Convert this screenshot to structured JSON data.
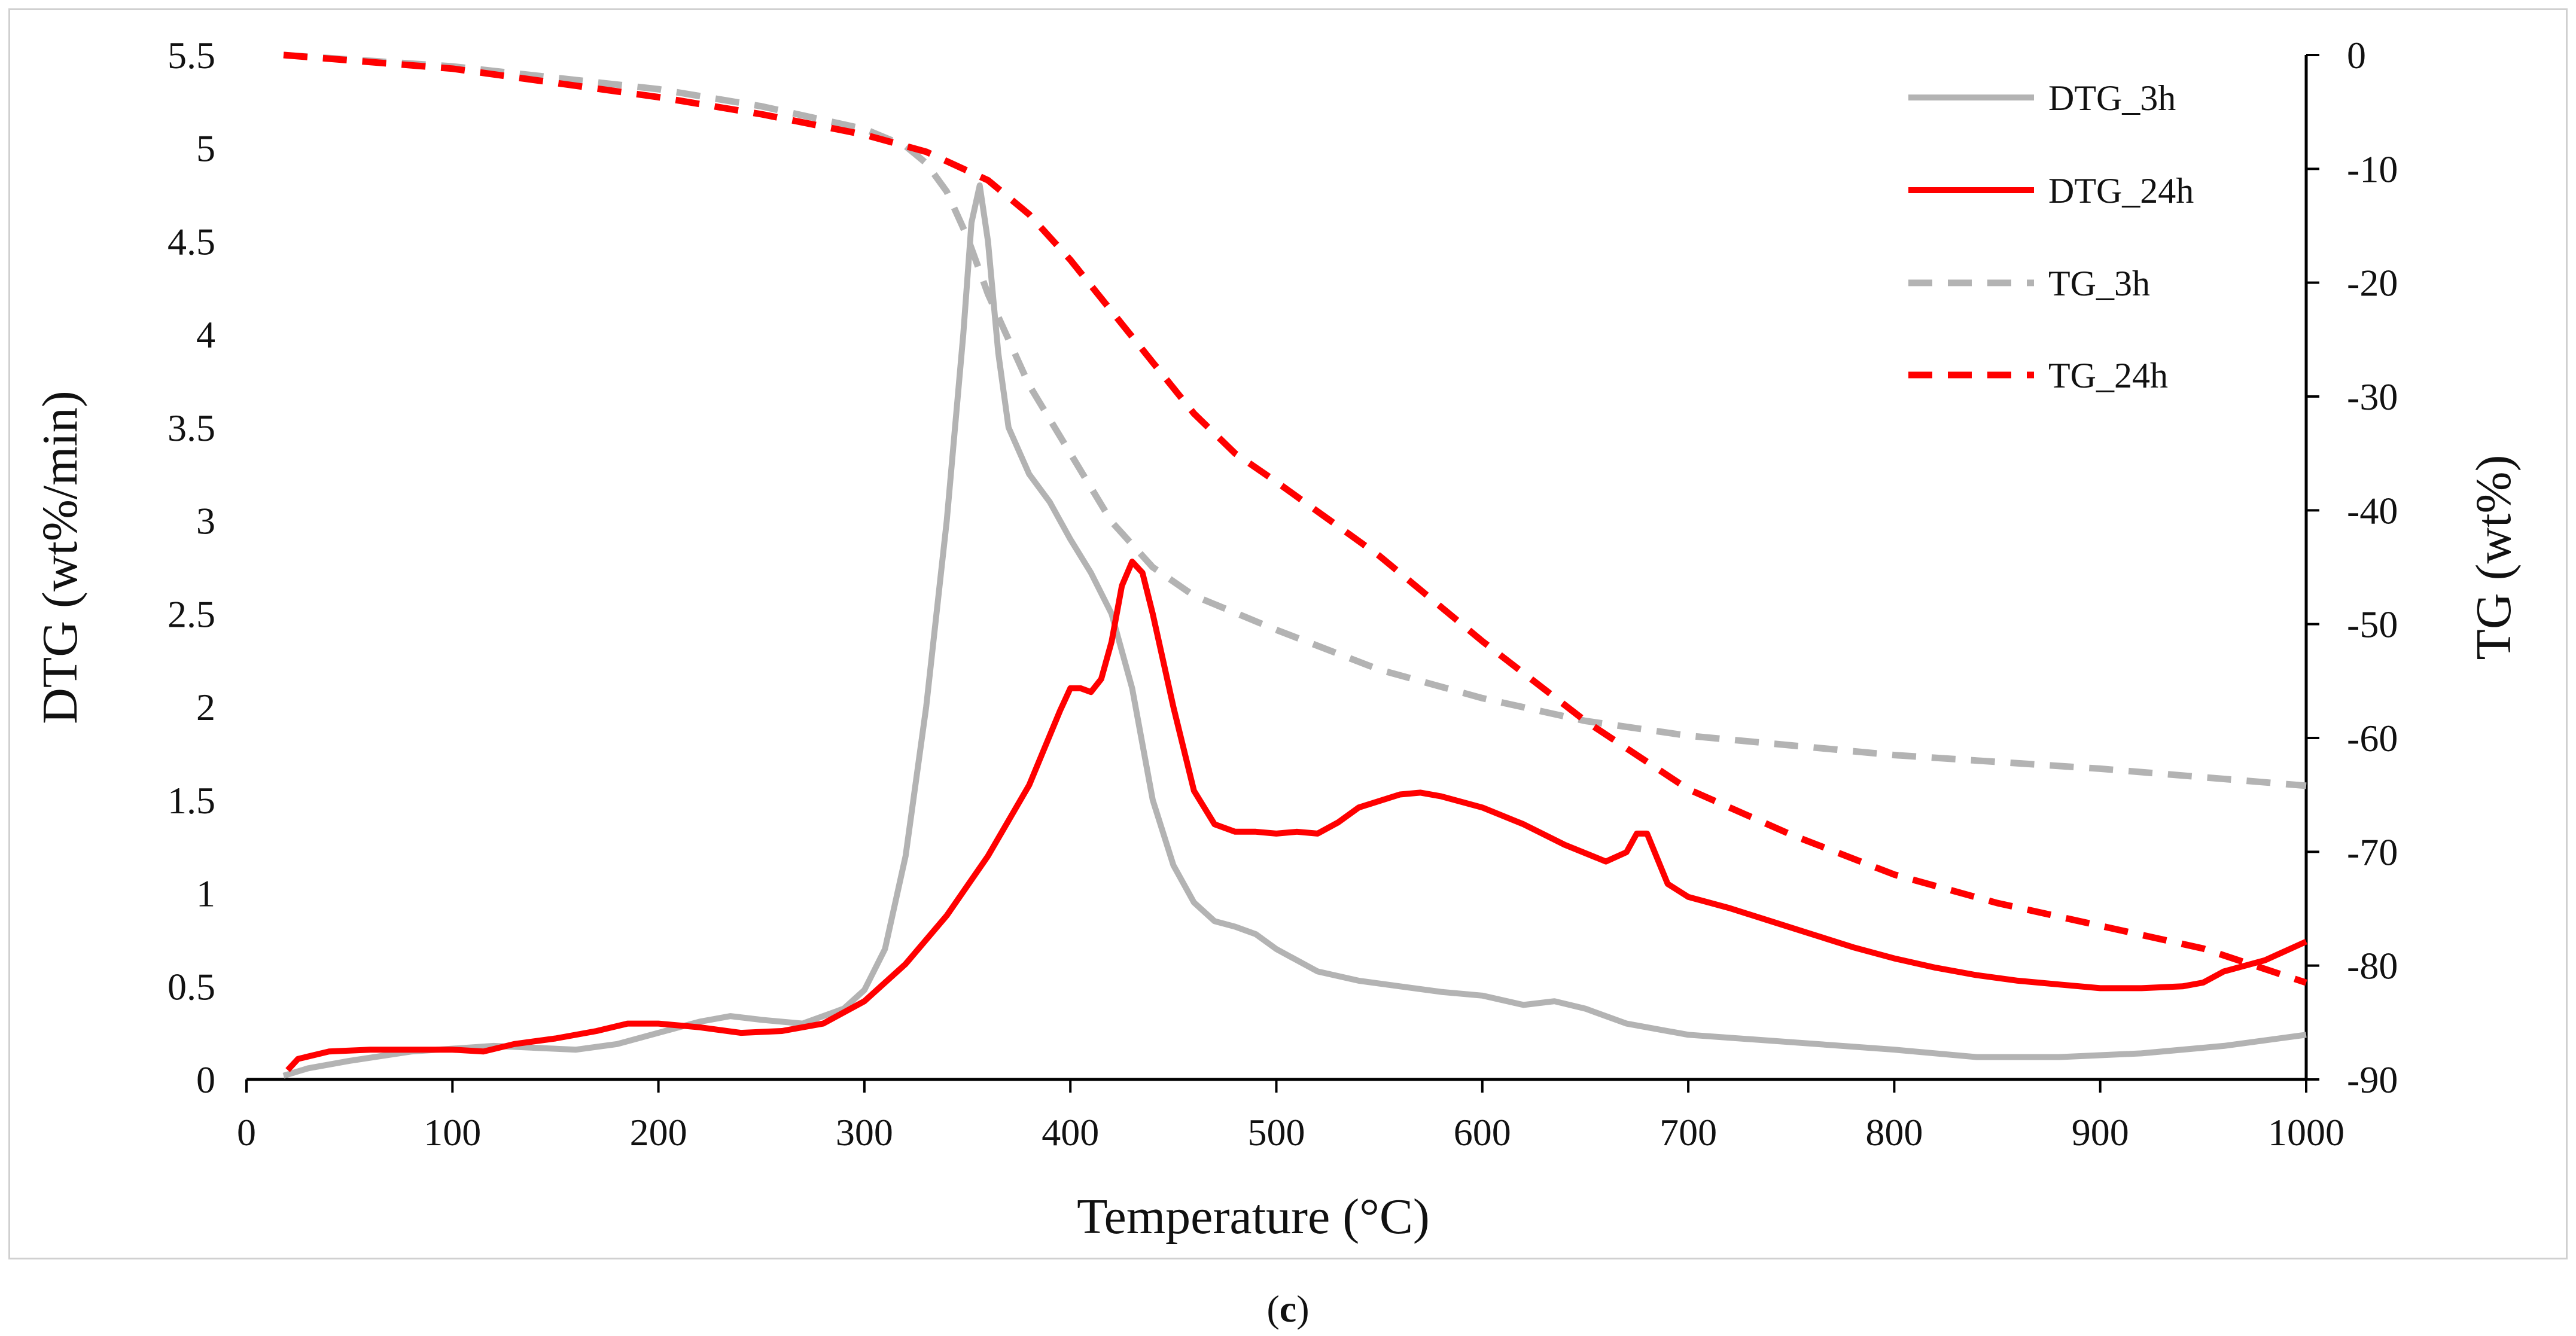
{
  "chart_data": {
    "type": "line",
    "panel_label_prefix": "(",
    "panel_label_letter": "c",
    "panel_label_suffix": ")",
    "xlabel": "Temperature (°C)",
    "ylabel_left": "DTG (wt%/min)",
    "ylabel_right": "TG (wt%)",
    "xlim": [
      0,
      1000
    ],
    "ylim_left": [
      0,
      5.5
    ],
    "ylim_right": [
      -90,
      0
    ],
    "x_ticks": [
      "0",
      "100",
      "200",
      "300",
      "400",
      "500",
      "600",
      "700",
      "800",
      "900",
      "1000"
    ],
    "y_left_ticks": [
      "0",
      "0.5",
      "1",
      "1.5",
      "2",
      "2.5",
      "3",
      "3.5",
      "4",
      "4.5",
      "5",
      "5.5"
    ],
    "y_right_ticks": [
      "0",
      "-10",
      "-20",
      "-30",
      "-40",
      "-50",
      "-60",
      "-70",
      "-80",
      "-90"
    ],
    "legend_position": "top-right",
    "series": [
      {
        "name": "DTG_3h",
        "axis": "left",
        "color": "#b3b3b3",
        "dash": "solid",
        "x": [
          18,
          30,
          50,
          80,
          120,
          160,
          180,
          200,
          220,
          235,
          250,
          270,
          290,
          300,
          310,
          320,
          330,
          340,
          348,
          352,
          356,
          360,
          365,
          370,
          380,
          390,
          400,
          410,
          420,
          430,
          440,
          450,
          460,
          470,
          480,
          490,
          500,
          520,
          540,
          560,
          580,
          600,
          620,
          635,
          650,
          670,
          700,
          750,
          800,
          840,
          880,
          920,
          960,
          1000
        ],
        "values": [
          0.02,
          0.06,
          0.1,
          0.15,
          0.18,
          0.16,
          0.19,
          0.25,
          0.31,
          0.34,
          0.32,
          0.3,
          0.38,
          0.48,
          0.7,
          1.2,
          2.0,
          3.0,
          4.0,
          4.6,
          4.8,
          4.5,
          3.9,
          3.5,
          3.25,
          3.1,
          2.9,
          2.72,
          2.5,
          2.1,
          1.5,
          1.15,
          0.95,
          0.85,
          0.82,
          0.78,
          0.7,
          0.58,
          0.53,
          0.5,
          0.47,
          0.45,
          0.4,
          0.42,
          0.38,
          0.3,
          0.24,
          0.2,
          0.16,
          0.12,
          0.12,
          0.14,
          0.18,
          0.24
        ]
      },
      {
        "name": "DTG_24h",
        "axis": "left",
        "color": "#ff0000",
        "dash": "solid",
        "x": [
          20,
          25,
          40,
          60,
          80,
          100,
          115,
          130,
          150,
          170,
          185,
          200,
          220,
          240,
          260,
          280,
          300,
          320,
          340,
          360,
          380,
          395,
          400,
          405,
          410,
          415,
          420,
          425,
          430,
          435,
          440,
          450,
          460,
          470,
          480,
          490,
          500,
          510,
          520,
          530,
          540,
          560,
          570,
          580,
          600,
          620,
          640,
          660,
          670,
          675,
          680,
          690,
          700,
          720,
          740,
          760,
          780,
          800,
          820,
          840,
          860,
          880,
          900,
          920,
          940,
          950,
          960,
          980,
          1000
        ],
        "values": [
          0.05,
          0.11,
          0.15,
          0.16,
          0.16,
          0.16,
          0.15,
          0.19,
          0.22,
          0.26,
          0.3,
          0.3,
          0.28,
          0.25,
          0.26,
          0.3,
          0.42,
          0.62,
          0.88,
          1.2,
          1.58,
          1.98,
          2.1,
          2.1,
          2.08,
          2.15,
          2.35,
          2.65,
          2.78,
          2.72,
          2.5,
          2.0,
          1.55,
          1.37,
          1.33,
          1.33,
          1.32,
          1.33,
          1.32,
          1.38,
          1.46,
          1.53,
          1.54,
          1.52,
          1.46,
          1.37,
          1.26,
          1.17,
          1.22,
          1.32,
          1.32,
          1.05,
          0.98,
          0.92,
          0.85,
          0.78,
          0.71,
          0.65,
          0.6,
          0.56,
          0.53,
          0.51,
          0.49,
          0.49,
          0.5,
          0.52,
          0.58,
          0.64,
          0.74
        ]
      },
      {
        "name": "TG_3h",
        "axis": "right",
        "color": "#b3b3b3",
        "dash": "dashed",
        "x": [
          18,
          100,
          200,
          250,
          300,
          320,
          330,
          340,
          350,
          360,
          370,
          380,
          400,
          420,
          440,
          460,
          500,
          550,
          600,
          650,
          700,
          800,
          900,
          1000
        ],
        "values": [
          0,
          -1,
          -3,
          -4.5,
          -6.5,
          -8,
          -9.5,
          -12,
          -16,
          -21,
          -25,
          -29,
          -35,
          -41,
          -45,
          -47.5,
          -50.5,
          -54,
          -56.5,
          -58.5,
          -59.8,
          -61.5,
          -62.7,
          -64.2
        ]
      },
      {
        "name": "TG_24h",
        "axis": "right",
        "color": "#ff0000",
        "dash": "dashed",
        "x": [
          18,
          100,
          200,
          250,
          300,
          330,
          360,
          380,
          400,
          420,
          440,
          460,
          480,
          500,
          550,
          600,
          650,
          700,
          750,
          800,
          850,
          900,
          950,
          1000
        ],
        "values": [
          0,
          -1.2,
          -3.7,
          -5.2,
          -7,
          -8.5,
          -11,
          -14,
          -18,
          -22.5,
          -27,
          -31.5,
          -35,
          -37.5,
          -44,
          -51.5,
          -58.5,
          -64.5,
          -68.5,
          -72,
          -74.5,
          -76.5,
          -78.5,
          -81.5
        ]
      }
    ]
  }
}
